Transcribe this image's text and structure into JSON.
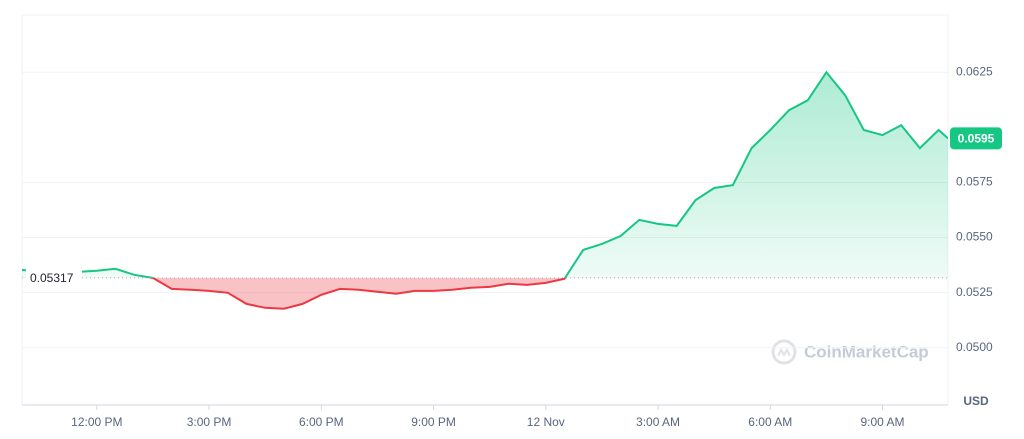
{
  "chart_data": {
    "type": "line",
    "x": [
      10,
      10.5,
      11,
      11.5,
      12,
      12.5,
      13,
      13.5,
      14,
      14.5,
      15,
      15.5,
      16,
      16.5,
      17,
      17.5,
      18,
      18.5,
      19,
      19.5,
      20,
      20.5,
      21,
      21.5,
      22,
      22.5,
      23,
      23.5,
      24,
      24.5,
      25,
      25.5,
      26,
      26.5,
      27,
      27.5,
      28,
      28.5,
      29,
      29.5,
      30,
      30.5,
      31,
      31.5,
      32,
      32.5,
      33,
      33.5,
      34,
      34.5,
      34.75
    ],
    "values": [
      0.05353,
      0.05344,
      0.05344,
      0.05344,
      0.05349,
      0.05358,
      0.05331,
      0.05317,
      0.05267,
      0.05263,
      0.05258,
      0.05249,
      0.05199,
      0.05181,
      0.05177,
      0.05199,
      0.0524,
      0.05267,
      0.05263,
      0.05254,
      0.05245,
      0.05258,
      0.05258,
      0.05263,
      0.05272,
      0.05276,
      0.0529,
      0.05285,
      0.05294,
      0.05313,
      0.05444,
      0.05471,
      0.05507,
      0.0558,
      0.05562,
      0.05553,
      0.0567,
      0.05725,
      0.05738,
      0.05906,
      0.05988,
      0.06078,
      0.06123,
      0.0625,
      0.06146,
      0.05988,
      0.05965,
      0.0601,
      0.05906,
      0.05988,
      0.0595
    ],
    "color_up": "#16c784",
    "color_down": "#ea3943",
    "baseline": 0.05317,
    "last_price": 0.0595,
    "unit": "USD",
    "watermark": "CoinMarketCap",
    "xlim": [
      10,
      34.75
    ],
    "ylim": [
      0.0474,
      0.0651
    ],
    "xticks": [
      {
        "value": 12,
        "label": "12:00 PM"
      },
      {
        "value": 15,
        "label": "3:00 PM"
      },
      {
        "value": 18,
        "label": "6:00 PM"
      },
      {
        "value": 21,
        "label": "9:00 PM"
      },
      {
        "value": 24,
        "label": "12 Nov"
      },
      {
        "value": 27,
        "label": "3:00 AM"
      },
      {
        "value": 30,
        "label": "6:00 AM"
      },
      {
        "value": 33,
        "label": "9:00 AM"
      }
    ],
    "yticks": [
      {
        "value": 0.05,
        "label": "0.0500"
      },
      0.0525,
      {
        "value": 0.055,
        "label": "0.0550"
      },
      0.0575,
      0.0625
    ],
    "grid": true
  }
}
